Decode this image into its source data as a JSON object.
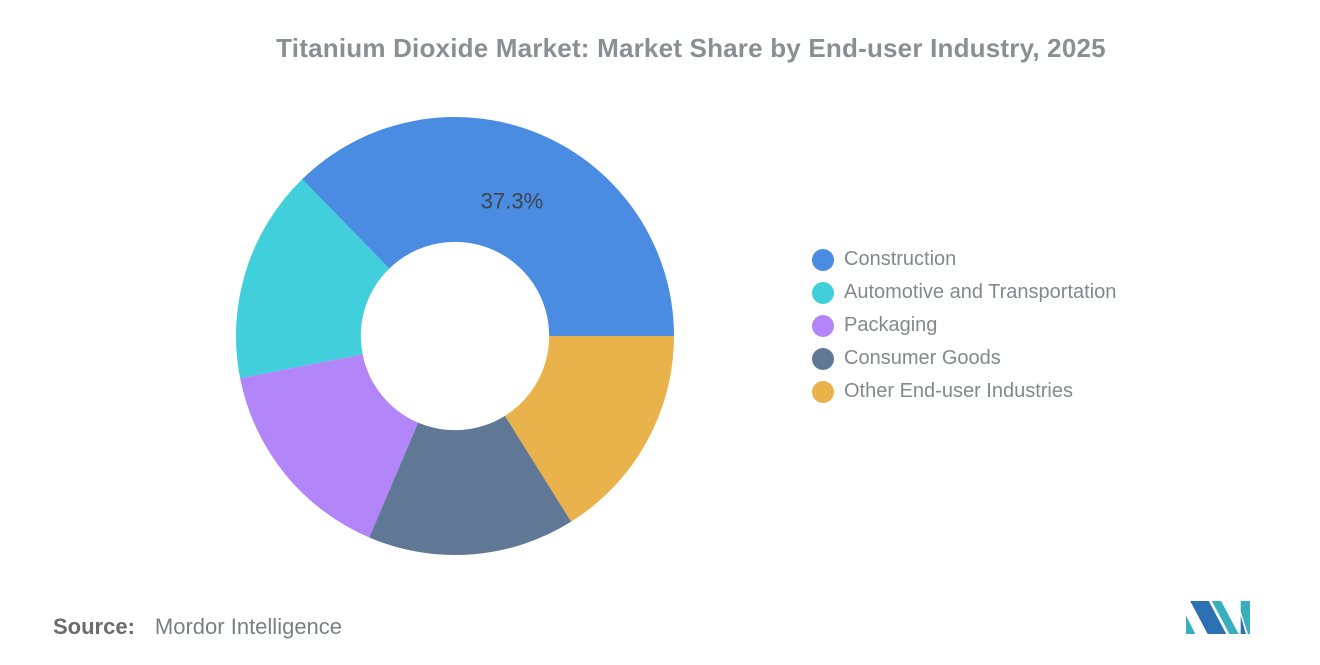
{
  "page": {
    "background": "#FFFFFF"
  },
  "chart_data": {
    "type": "pie",
    "subtype": "donut",
    "title": "Titanium Dioxide Market: Market Share by End-user Industry, 2025",
    "categories": [
      "Construction",
      "Automotive and Transportation",
      "Packaging",
      "Consumer Goods",
      "Other End-user Industries"
    ],
    "values": [
      37.3,
      15.8,
      15.5,
      15.3,
      16.1
    ],
    "value_labels_shown": [
      "37.3%",
      "",
      "",
      "",
      ""
    ],
    "colors": [
      "#4A8CE2",
      "#41CFDB",
      "#B286F9",
      "#607796",
      "#E9B24A"
    ],
    "start_angle_deg": 90,
    "direction": "counterclockwise",
    "inner_radius_ratio": 0.43,
    "outer_radius_px": 219,
    "legend_position": "right",
    "legend_marker": "circle",
    "label_radius_ratio": 0.67,
    "label_color": "#3F4449",
    "label_font_size": 22,
    "title_color": "#8C8F92",
    "legend_text_color": "#84888D",
    "grid": false
  },
  "footer": {
    "source_label": "Source:",
    "source_value": "Mordor Intelligence",
    "logo": {
      "name": "mordor-intelligence-logo",
      "teal": "#39AEBF",
      "blue": "#2C70B1"
    }
  }
}
